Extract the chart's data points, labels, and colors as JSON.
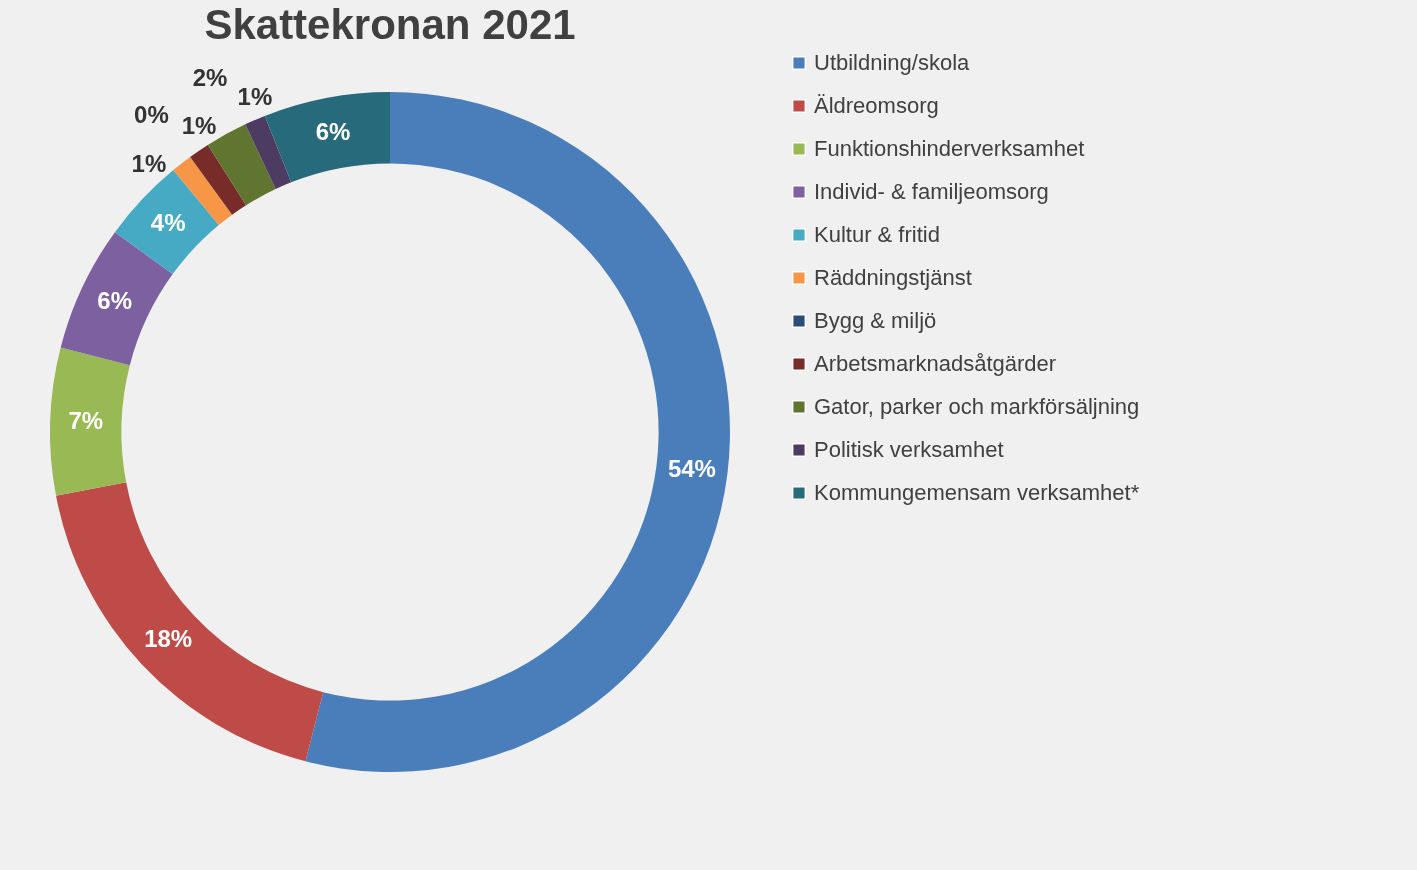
{
  "chart_data": {
    "type": "donut",
    "title": "Skattekronan 2021",
    "categories": [
      "Utbildning/skola",
      "Äldreomsorg",
      "Funktionshinderverksamhet",
      "Individ- & familjeomsorg",
      "Kultur & fritid",
      "Räddningstjänst",
      "Bygg & miljö",
      "Arbetsmarknadsåtgärder",
      "Gator, parker och markförsäljning",
      "Politisk verksamhet",
      "Kommungemensam verksamhet*"
    ],
    "values": [
      54,
      18,
      7,
      6,
      4,
      1,
      0,
      1,
      2,
      1,
      6
    ],
    "value_labels": [
      "54%",
      "18%",
      "7%",
      "6%",
      "4%",
      "1%",
      "0%",
      "1%",
      "2%",
      "1%",
      "6%"
    ],
    "colors": [
      "#4a7ebb",
      "#be4b48",
      "#98b954",
      "#7d60a0",
      "#46aac5",
      "#f79646",
      "#2c4d75",
      "#772c2a",
      "#5f7530",
      "#4d3b62",
      "#276a7c"
    ],
    "legend": "right"
  }
}
